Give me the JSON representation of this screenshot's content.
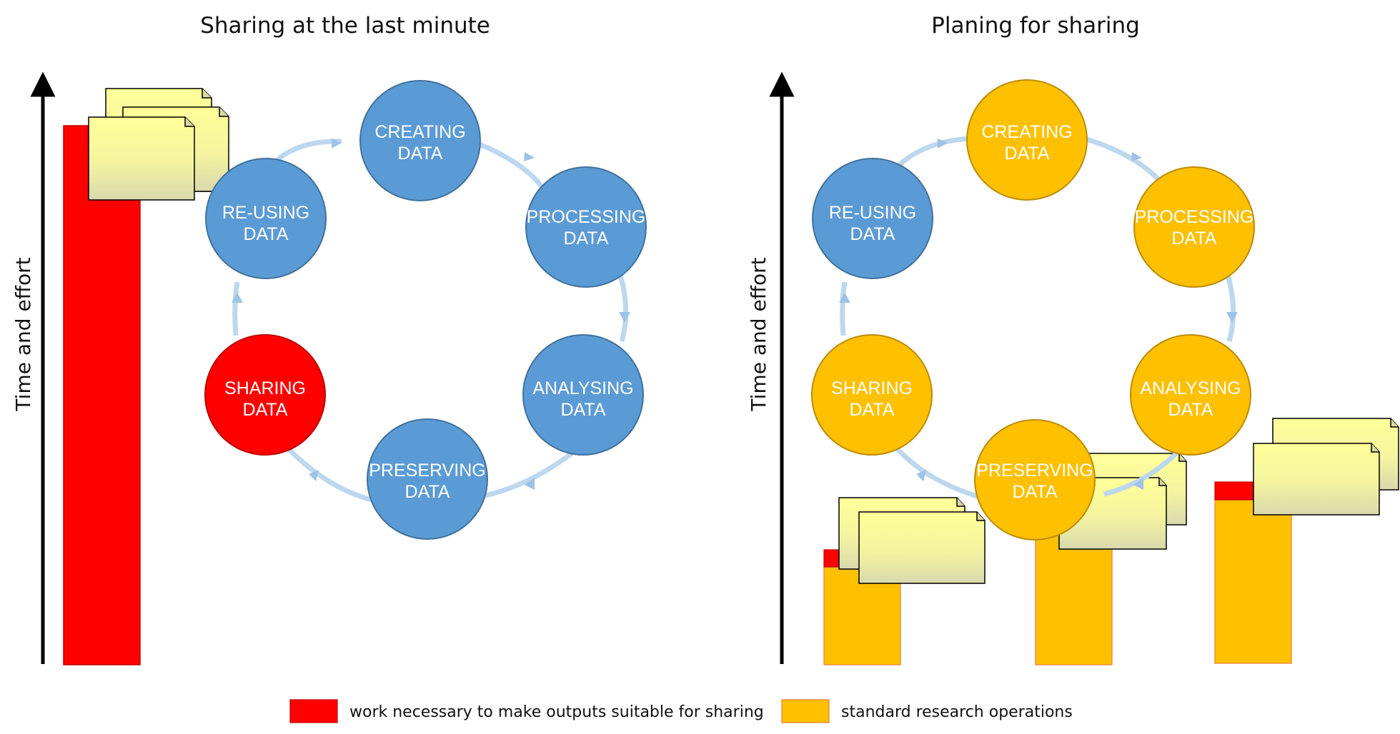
{
  "colors": {
    "blue": "#5b9bd5",
    "blue_stroke": "#41719c",
    "orange": "#ffc000",
    "orange_stroke": "#bc8c00",
    "red": "#ff0000",
    "red_stroke": "#c00000",
    "cycle_line": "#bdd7ee",
    "cycle_arrow": "#9dc3e6",
    "document_fill_top": "#ffff99",
    "document_fill_bottom": "#dcdca8"
  },
  "left_panel": {
    "title": "Sharing at the last minute",
    "axis_label": "Time and effort",
    "stages": [
      {
        "line1": "CREATING",
        "line2": "DATA",
        "color": "blue"
      },
      {
        "line1": "PROCESSING",
        "line2": "DATA",
        "color": "blue"
      },
      {
        "line1": "ANALYSING",
        "line2": "DATA",
        "color": "blue"
      },
      {
        "line1": "PRESERVING",
        "line2": "DATA",
        "color": "blue"
      },
      {
        "line1": "SHARING",
        "line2": "DATA",
        "color": "red"
      },
      {
        "line1": "RE-USING",
        "line2": "DATA",
        "color": "blue"
      }
    ]
  },
  "right_panel": {
    "title": "Planing for sharing",
    "axis_label": "Time and effort",
    "stages": [
      {
        "line1": "CREATING",
        "line2": "DATA",
        "color": "orange"
      },
      {
        "line1": "PROCESSING",
        "line2": "DATA",
        "color": "orange"
      },
      {
        "line1": "ANALYSING",
        "line2": "DATA",
        "color": "orange"
      },
      {
        "line1": "PRESERVING",
        "line2": "DATA",
        "color": "orange"
      },
      {
        "line1": "SHARING",
        "line2": "DATA",
        "color": "orange"
      },
      {
        "line1": "RE-USING",
        "line2": "DATA",
        "color": "blue"
      }
    ]
  },
  "legend": {
    "items": [
      {
        "label": "work necessary to make outputs suitable for sharing",
        "color": "red"
      },
      {
        "label": "standard research operations",
        "color": "orange"
      }
    ]
  }
}
